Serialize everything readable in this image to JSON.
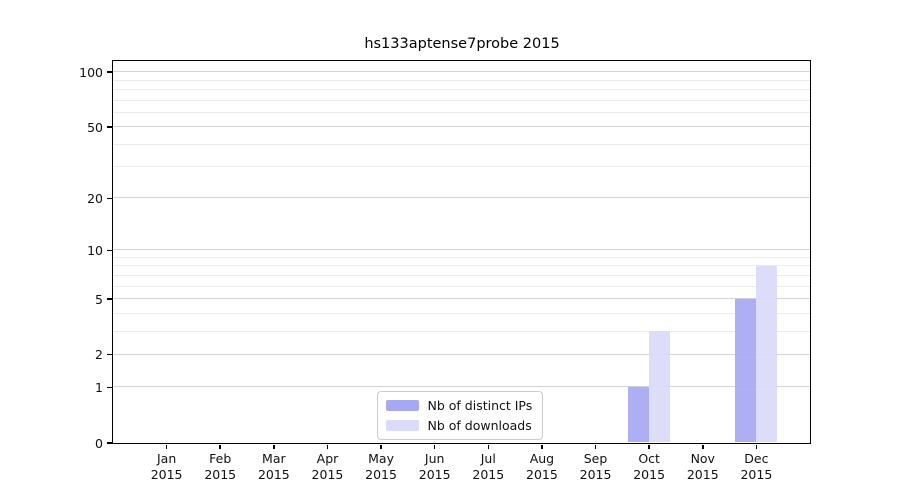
{
  "page": {
    "background": "#ffffff"
  },
  "chart_data": {
    "type": "bar",
    "title": "hs133aptense7probe 2015",
    "categories": [
      "Jan",
      "Feb",
      "Mar",
      "Apr",
      "May",
      "Jun",
      "Jul",
      "Aug",
      "Sep",
      "Oct",
      "Nov",
      "Dec"
    ],
    "category_year": "2015",
    "series": [
      {
        "name": "Nb of distinct IPs",
        "color": "#a7a8f2",
        "values": [
          0,
          0,
          0,
          0,
          0,
          0,
          0,
          0,
          0,
          1,
          0,
          5
        ]
      },
      {
        "name": "Nb of downloads",
        "color": "#d9dbf9",
        "values": [
          0,
          0,
          0,
          0,
          0,
          0,
          0,
          0,
          0,
          3,
          0,
          8
        ]
      }
    ],
    "xlabel": "",
    "ylabel": "",
    "y_axis": {
      "scale": "log1p",
      "tick_values": [
        0,
        1,
        2,
        5,
        10,
        20,
        50,
        100
      ],
      "tick_labels": [
        "0",
        "1",
        "2",
        "5",
        "10",
        "20",
        "50",
        "100"
      ],
      "minor_gridlines": [
        3,
        4,
        6,
        7,
        8,
        9,
        30,
        40,
        60,
        70,
        80,
        90
      ],
      "ylim": [
        0,
        113
      ]
    },
    "grid": true,
    "legend": {
      "position": "lower-center",
      "entries": [
        "Nb of distinct IPs",
        "Nb of downloads"
      ]
    }
  },
  "colors": {
    "bar_distinct_ips": "#a7a8f2",
    "bar_downloads": "#d9dbf9",
    "grid_major": "#d2d2d2",
    "grid_minor": "#ebebeb",
    "spine": "#000000",
    "text": "#111111",
    "legend_border": "#cccccc"
  }
}
